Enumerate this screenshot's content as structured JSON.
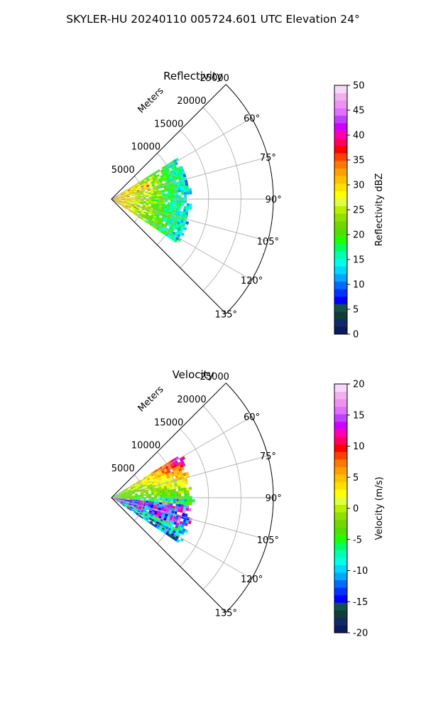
{
  "figure_title": "SKYLER-HU  20240110  005724.601 UTC Elevation 24°",
  "chart_data": [
    {
      "type": "polar-sector",
      "title": "Reflectivity",
      "radial_label": "Meters",
      "r_ticks": [
        "5000",
        "10000",
        "15000",
        "20000",
        "25000"
      ],
      "r_tick_values": [
        5000,
        10000,
        15000,
        20000,
        25000
      ],
      "rlim": [
        0,
        25000
      ],
      "theta_ticks": [
        "60°",
        "75°",
        "90°",
        "105°",
        "120°",
        "135°"
      ],
      "theta_tick_values": [
        60,
        75,
        90,
        105,
        120,
        135
      ],
      "theta_range_deg": [
        45,
        135
      ],
      "data_extent": {
        "azimuth_deg": [
          58,
          122
        ],
        "max_range_m": [
          12000,
          11500
        ]
      },
      "grid": true,
      "colorbar": {
        "label": "Reflectivity dBZ",
        "ticks": [
          "0",
          "5",
          "10",
          "15",
          "20",
          "25",
          "30",
          "35",
          "40",
          "45",
          "50"
        ],
        "tick_values": [
          0,
          5,
          10,
          15,
          20,
          25,
          30,
          35,
          40,
          45,
          50
        ],
        "range": [
          0,
          50
        ],
        "colors": [
          "#0b1a5c",
          "#102a66",
          "#0f3d3a",
          "#12524a",
          "#0000ff",
          "#0033ff",
          "#006bff",
          "#00a8ff",
          "#00d8ff",
          "#00ffe6",
          "#00ffb0",
          "#00ff60",
          "#20ff00",
          "#50e000",
          "#70d800",
          "#90e000",
          "#b8f000",
          "#e0ff40",
          "#ffff00",
          "#ffe000",
          "#ffc000",
          "#ffa000",
          "#ff7800",
          "#ff4000",
          "#ff0000",
          "#ff0060",
          "#ff00b0",
          "#d000ff",
          "#c040ff",
          "#e070ff",
          "#f090f0",
          "#f0b0f0",
          "#f8d8f8"
        ]
      }
    },
    {
      "type": "polar-sector",
      "title": "Velocity",
      "radial_label": "Meters",
      "r_ticks": [
        "5000",
        "10000",
        "15000",
        "20000",
        "25000"
      ],
      "r_tick_values": [
        5000,
        10000,
        15000,
        20000,
        25000
      ],
      "rlim": [
        0,
        25000
      ],
      "theta_ticks": [
        "60°",
        "75°",
        "90°",
        "105°",
        "120°",
        "135°"
      ],
      "theta_tick_values": [
        60,
        75,
        90,
        105,
        120,
        135
      ],
      "theta_range_deg": [
        45,
        135
      ],
      "data_extent": {
        "azimuth_deg": [
          58,
          122
        ],
        "max_range_m": [
          12000,
          11500
        ]
      },
      "grid": true,
      "colorbar": {
        "label": "Velocity (m/s)",
        "ticks": [
          "-20",
          "-15",
          "-10",
          "-5",
          "0",
          "5",
          "10",
          "15",
          "20"
        ],
        "tick_values": [
          -20,
          -15,
          -10,
          -5,
          0,
          5,
          10,
          15,
          20
        ],
        "range": [
          -20,
          20
        ],
        "colors": [
          "#0b1a5c",
          "#102a66",
          "#0f3d3a",
          "#12524a",
          "#0000ff",
          "#0033ff",
          "#006bff",
          "#00a8ff",
          "#00d8ff",
          "#00ffe6",
          "#00ffb0",
          "#00ff60",
          "#20ff00",
          "#50e000",
          "#70d800",
          "#90e000",
          "#b8f000",
          "#e0ff40",
          "#ffff00",
          "#ffe000",
          "#ffc000",
          "#ffa000",
          "#ff7800",
          "#ff4000",
          "#ff0000",
          "#ff0060",
          "#ff00b0",
          "#d000ff",
          "#c040ff",
          "#e070ff",
          "#f090f0",
          "#f0b0f0",
          "#f8d8f8"
        ]
      }
    }
  ]
}
